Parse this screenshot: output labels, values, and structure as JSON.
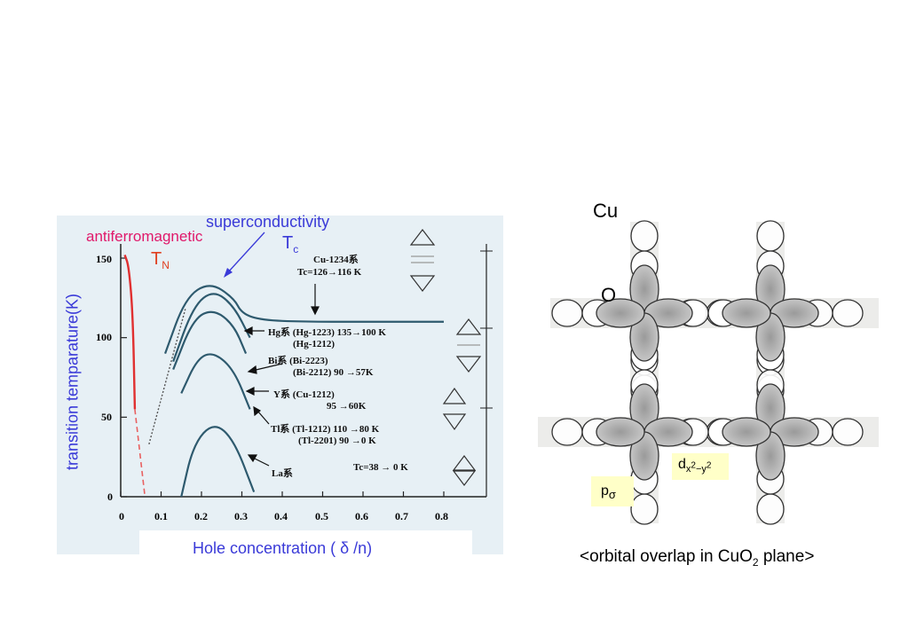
{
  "chart": {
    "title_top": "superconductivity",
    "label_af": "antiferromagnetic",
    "label_tn": "T",
    "label_tn_sub": "N",
    "label_tc": "T",
    "label_tc_sub": "c",
    "ylabel": "transition temparature(K)",
    "xlabel": "Hole concentration ( δ /n)",
    "yticks": [
      "0",
      "50",
      "100",
      "150"
    ],
    "xticks": [
      "0",
      "0.1",
      "0.2",
      "0.3",
      "0.4",
      "0.5",
      "0.6",
      "0.7",
      "0.8"
    ],
    "notes": {
      "cu_line1": "Cu-1234系",
      "cu_line2": "Tc=126→116 K",
      "hg_line1": "Hg系 (Hg-1223)  135→100 K",
      "hg_line2": "(Hg-1212)",
      "bi_line1": "Bi系 (Bi-2223)",
      "bi_line2": "(Bi-2212)  90 →57K",
      "y_line1": "Y系  (Cu-1212)",
      "y_line2": "95 →60K",
      "tl_line1": "Tl系  (Tl-1212)  110 →80 K",
      "tl_line2": "(Tl-2201)  90 →0 K",
      "la_line": "La系",
      "la_tc": "Tc=38 → 0 K"
    }
  },
  "chart_data": {
    "type": "line",
    "xlabel": "Hole concentration ( δ /n)",
    "ylabel": "transition temparature(K)",
    "xlim": [
      0,
      0.85
    ],
    "ylim": [
      0,
      150
    ],
    "series": [
      {
        "points": [
          [
            0.11,
            90
          ],
          [
            0.16,
            125
          ],
          [
            0.22,
            135
          ],
          [
            0.28,
            125
          ],
          [
            0.3,
            115
          ],
          [
            0.35,
            111
          ],
          [
            0.45,
            110
          ],
          [
            0.6,
            110
          ],
          [
            0.8,
            110
          ]
        ]
      },
      {
        "points": [
          [
            0.13,
            85
          ],
          [
            0.18,
            120
          ],
          [
            0.23,
            130
          ],
          [
            0.28,
            120
          ],
          [
            0.32,
            100
          ]
        ]
      },
      {
        "points": [
          [
            0.13,
            80
          ],
          [
            0.18,
            112
          ],
          [
            0.23,
            118
          ],
          [
            0.28,
            108
          ],
          [
            0.31,
            90
          ]
        ]
      },
      {
        "points": [
          [
            0.15,
            65
          ],
          [
            0.19,
            87
          ],
          [
            0.23,
            91
          ],
          [
            0.28,
            80
          ],
          [
            0.32,
            55
          ]
        ]
      },
      {
        "points": [
          [
            0.15,
            0
          ],
          [
            0.18,
            33
          ],
          [
            0.23,
            47
          ],
          [
            0.28,
            36
          ],
          [
            0.33,
            3
          ]
        ]
      },
      {
        "points": [
          [
            0.01,
            152
          ],
          [
            0.02,
            145
          ],
          [
            0.03,
            115
          ],
          [
            0.035,
            55
          ]
        ]
      },
      {
        "points": [
          [
            0.035,
            55
          ],
          [
            0.06,
            0
          ]
        ]
      }
    ]
  },
  "orbital": {
    "label_cu": "Cu",
    "label_o": "O",
    "label_d": "d",
    "label_d_sub": "x",
    "label_d_sup1": "2",
    "label_d_mid": "−y",
    "label_d_sup2": "2",
    "label_p": "p",
    "label_p_sub": "σ",
    "caption_pre": "<orbital overlap in CuO",
    "caption_sub": "2",
    "caption_post": " plane>"
  }
}
